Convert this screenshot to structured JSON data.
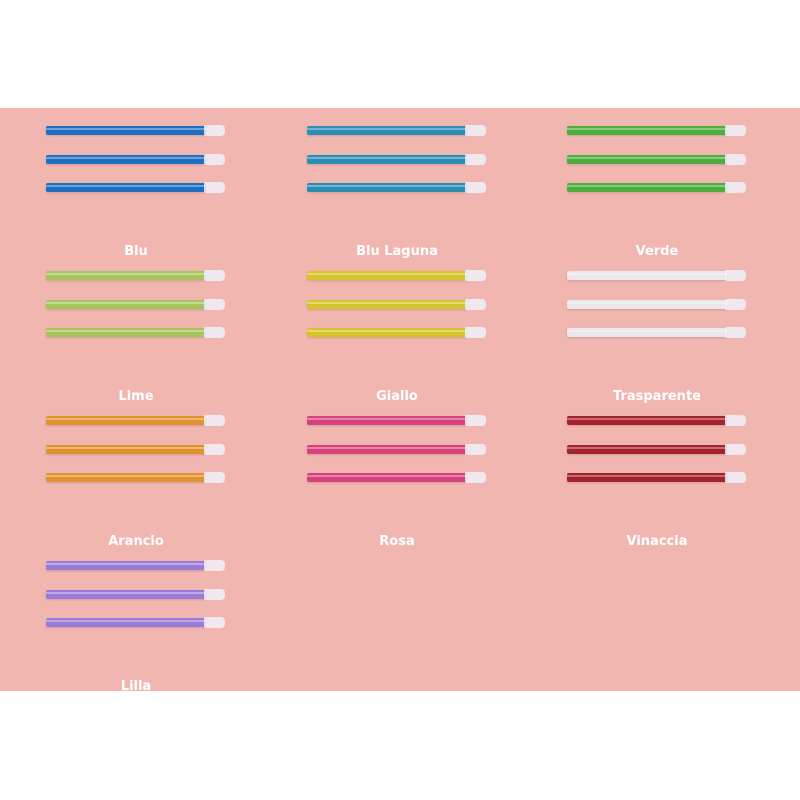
{
  "swatches": [
    {
      "label": "Blu",
      "color": "#1e6fc4"
    },
    {
      "label": "Blu Laguna",
      "color": "#2a8db4"
    },
    {
      "label": "Verde",
      "color": "#4cae3c"
    },
    {
      "label": "Lime",
      "color": "#a8c45c"
    },
    {
      "label": "Giallo",
      "color": "#d6c42c"
    },
    {
      "label": "Trasparente",
      "color": "#ebe6ea"
    },
    {
      "label": "Arancio",
      "color": "#e0922c"
    },
    {
      "label": "Rosa",
      "color": "#d8427c"
    },
    {
      "label": "Vinaccia",
      "color": "#a3222c"
    },
    {
      "label": "Lilla",
      "color": "#9c7ad8"
    }
  ]
}
